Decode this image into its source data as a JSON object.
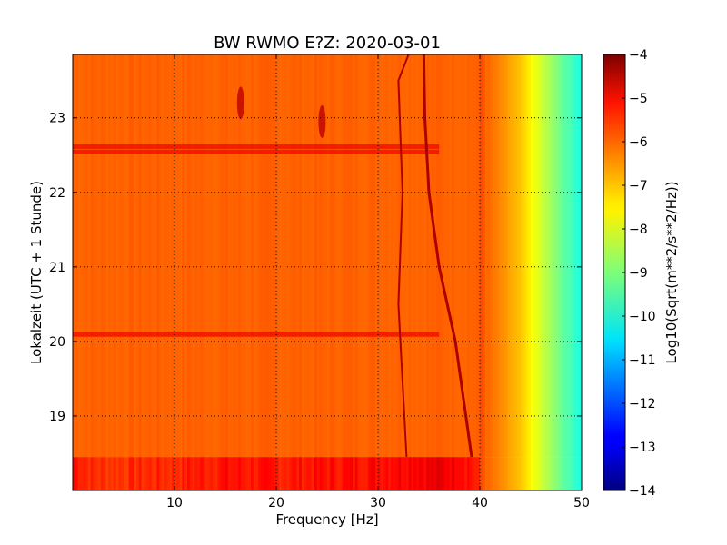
{
  "chart_data": {
    "type": "heatmap",
    "title": "BW RWMO E?Z: 2020-03-01",
    "xlabel": "Frequency [Hz]",
    "ylabel": "Lokalzeit (UTC + 1 Stunde)",
    "xlim": [
      0,
      50
    ],
    "ylim": [
      23.85,
      18.0
    ],
    "y_inverted": true,
    "xticks": [
      10,
      20,
      30,
      40,
      50
    ],
    "yticks": [
      19,
      20,
      21,
      22,
      23
    ],
    "grid": true,
    "colormap": "jet",
    "colorbar": {
      "label": "Log10(Sqrt(m**2/s**2/Hz))",
      "range": [
        -14,
        -4
      ],
      "ticks": [
        -4,
        -5,
        -6,
        -7,
        -8,
        -9,
        -10,
        -11,
        -12,
        -13,
        -14
      ]
    },
    "spectrum_profile": {
      "frequency_hz": [
        0,
        2,
        5,
        10,
        15,
        20,
        25,
        30,
        34,
        38,
        39.5,
        40.5,
        42,
        44,
        46,
        48,
        50
      ],
      "level": [
        -5.3,
        -5.7,
        -5.7,
        -5.6,
        -5.4,
        -5.5,
        -5.4,
        -5.3,
        -5.1,
        -5.1,
        -5.5,
        -6.2,
        -6.6,
        -7.2,
        -8.2,
        -9.2,
        -10.0
      ]
    },
    "features": {
      "data_gap_until_hour": 18.45,
      "drifting_line": {
        "hours": [
          18.45,
          20.0,
          21.0,
          22.0,
          23.0,
          23.85
        ],
        "frequency_hz": [
          39.2,
          37.6,
          36.0,
          35.0,
          34.6,
          34.5
        ]
      },
      "second_line": {
        "hours": [
          18.45,
          20.5,
          22.0,
          23.5,
          23.85
        ],
        "frequency_hz": [
          32.8,
          32.0,
          32.4,
          32.0,
          33.0
        ]
      },
      "broadband_events_hours": [
        20.1,
        22.55,
        22.62
      ],
      "local_events": [
        {
          "frequency_hz": 16.5,
          "hour": 23.2
        },
        {
          "frequency_hz": 24.5,
          "hour": 22.95
        }
      ]
    }
  }
}
